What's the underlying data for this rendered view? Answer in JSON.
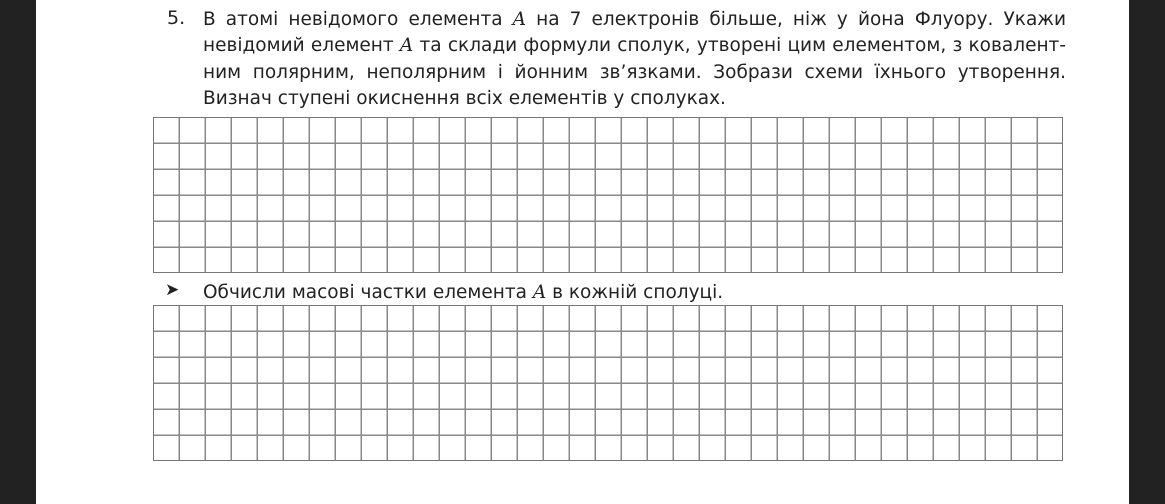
{
  "task": {
    "number": "5.",
    "lines": [
      [
        "В атомі невідомого елемента ",
        "A",
        " на 7 електронів більше, ніж у йона Флуору. Укажи"
      ],
      [
        "невідомий елемент ",
        "A",
        " та склади формули сполук, утворені цим елементом, з ковалент-"
      ],
      [
        "ним полярним, неполярним і йонним зв’язками. Зобрази схеми їхнього утворення."
      ],
      [
        "Визнач ступені окиснення всіх елементів у сполуках."
      ]
    ]
  },
  "subtask": {
    "bullet_icon": "arrowhead-bullet",
    "text_before": "Обчисли масові частки елемента ",
    "variable": "A",
    "text_after": " в кожній сполуці."
  },
  "grids": [
    {
      "rows": 6,
      "columns": 35
    },
    {
      "rows": 6,
      "columns": 35
    }
  ]
}
